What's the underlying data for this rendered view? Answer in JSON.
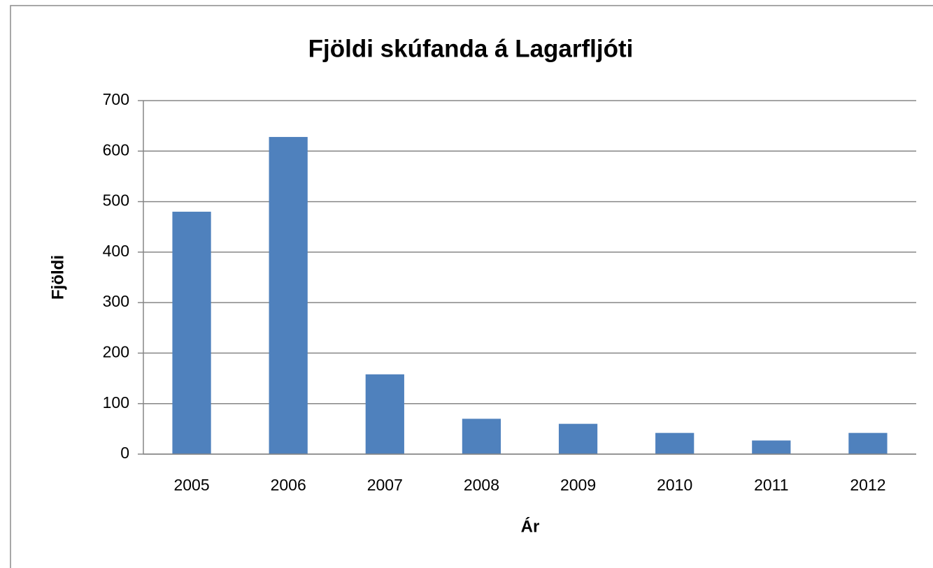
{
  "chart_data": {
    "type": "bar",
    "title": "Fjöldi skúfanda á Lagarfljóti",
    "x_label": "Ár",
    "y_label": "Fjöldi",
    "categories": [
      "2005",
      "2006",
      "2007",
      "2008",
      "2009",
      "2010",
      "2011",
      "2012"
    ],
    "values": [
      480,
      628,
      158,
      70,
      60,
      42,
      27,
      42
    ],
    "color": "#4f81bd",
    "ylim": [
      0,
      700
    ],
    "yticks": [
      0,
      100,
      200,
      300,
      400,
      500,
      600,
      700
    ],
    "grid": true
  }
}
